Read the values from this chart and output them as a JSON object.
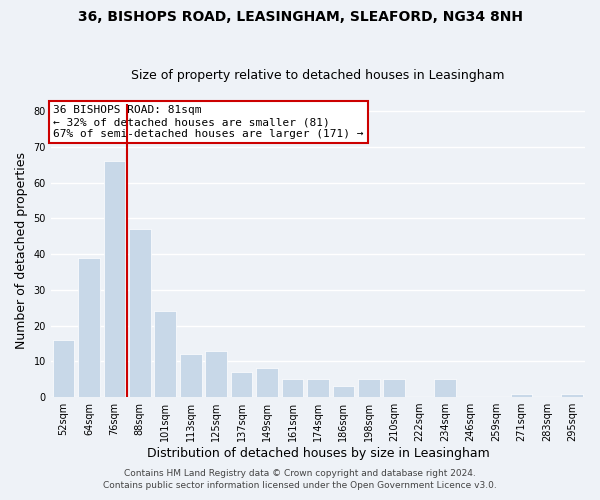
{
  "title": "36, BISHOPS ROAD, LEASINGHAM, SLEAFORD, NG34 8NH",
  "subtitle": "Size of property relative to detached houses in Leasingham",
  "xlabel": "Distribution of detached houses by size in Leasingham",
  "ylabel": "Number of detached properties",
  "categories": [
    "52sqm",
    "64sqm",
    "76sqm",
    "88sqm",
    "101sqm",
    "113sqm",
    "125sqm",
    "137sqm",
    "149sqm",
    "161sqm",
    "174sqm",
    "186sqm",
    "198sqm",
    "210sqm",
    "222sqm",
    "234sqm",
    "246sqm",
    "259sqm",
    "271sqm",
    "283sqm",
    "295sqm"
  ],
  "values": [
    16,
    39,
    66,
    47,
    24,
    12,
    13,
    7,
    8,
    5,
    5,
    3,
    5,
    5,
    0,
    5,
    0,
    0,
    1,
    0,
    1
  ],
  "bar_color": "#c8d8e8",
  "red_line_color": "#cc0000",
  "red_line_x": 2.5,
  "ylim": [
    0,
    82
  ],
  "yticks": [
    0,
    10,
    20,
    30,
    40,
    50,
    60,
    70,
    80
  ],
  "annotation_title": "36 BISHOPS ROAD: 81sqm",
  "annotation_line1": "← 32% of detached houses are smaller (81)",
  "annotation_line2": "67% of semi-detached houses are larger (171) →",
  "annotation_box_color": "#ffffff",
  "annotation_box_edgecolor": "#cc0000",
  "footer1": "Contains HM Land Registry data © Crown copyright and database right 2024.",
  "footer2": "Contains public sector information licensed under the Open Government Licence v3.0.",
  "background_color": "#eef2f7",
  "grid_color": "#ffffff",
  "title_fontsize": 10,
  "subtitle_fontsize": 9,
  "axis_label_fontsize": 9,
  "tick_fontsize": 7,
  "annotation_fontsize": 8,
  "footer_fontsize": 6.5
}
